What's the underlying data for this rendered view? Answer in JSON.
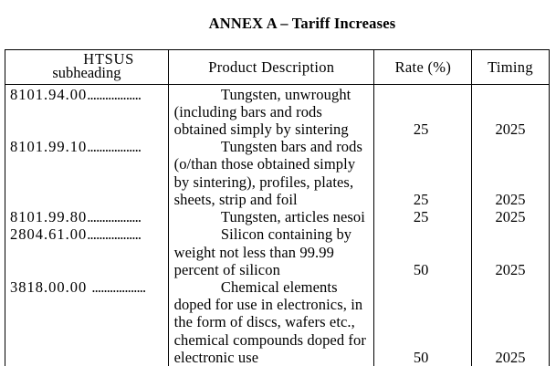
{
  "title": "ANNEX A – Tariff Increases",
  "table": {
    "headers": {
      "htsus": {
        "line1": "HTSUS",
        "line2": "subheading"
      },
      "description": {
        "label": "Product Description"
      },
      "rate": {
        "label": "Rate (%)"
      },
      "timing": {
        "label": "Timing"
      }
    },
    "rows": [
      {
        "htsus": "8101.94.00",
        "leader": "..................",
        "description_lines": [
          "Tungsten, unwrought",
          "(including bars and rods",
          "obtained simply by sintering"
        ],
        "rate": "25",
        "timing": "2025"
      },
      {
        "htsus": "8101.99.10",
        "leader": "..................",
        "description_lines": [
          "Tungsten bars and rods",
          "(o/than those obtained simply",
          "by sintering), profiles, plates,",
          "sheets, strip and foil"
        ],
        "rate": "25",
        "timing": "2025"
      },
      {
        "htsus": "8101.99.80",
        "leader": "..................",
        "description_lines": [
          "Tungsten, articles nesoi"
        ],
        "rate": "25",
        "timing": "2025"
      },
      {
        "htsus": "2804.61.00",
        "leader": "..................",
        "description_lines": [
          "Silicon containing by",
          "weight not less than 99.99",
          "percent of silicon"
        ],
        "rate": "50",
        "timing": "2025"
      },
      {
        "htsus": "3818.00.00 ",
        "leader": "..................",
        "description_lines": [
          "Chemical elements",
          "doped for use in electronics, in",
          "the form of discs, wafers etc.,",
          "chemical compounds doped for",
          "electronic use"
        ],
        "rate": "50",
        "timing": "2025"
      }
    ]
  }
}
